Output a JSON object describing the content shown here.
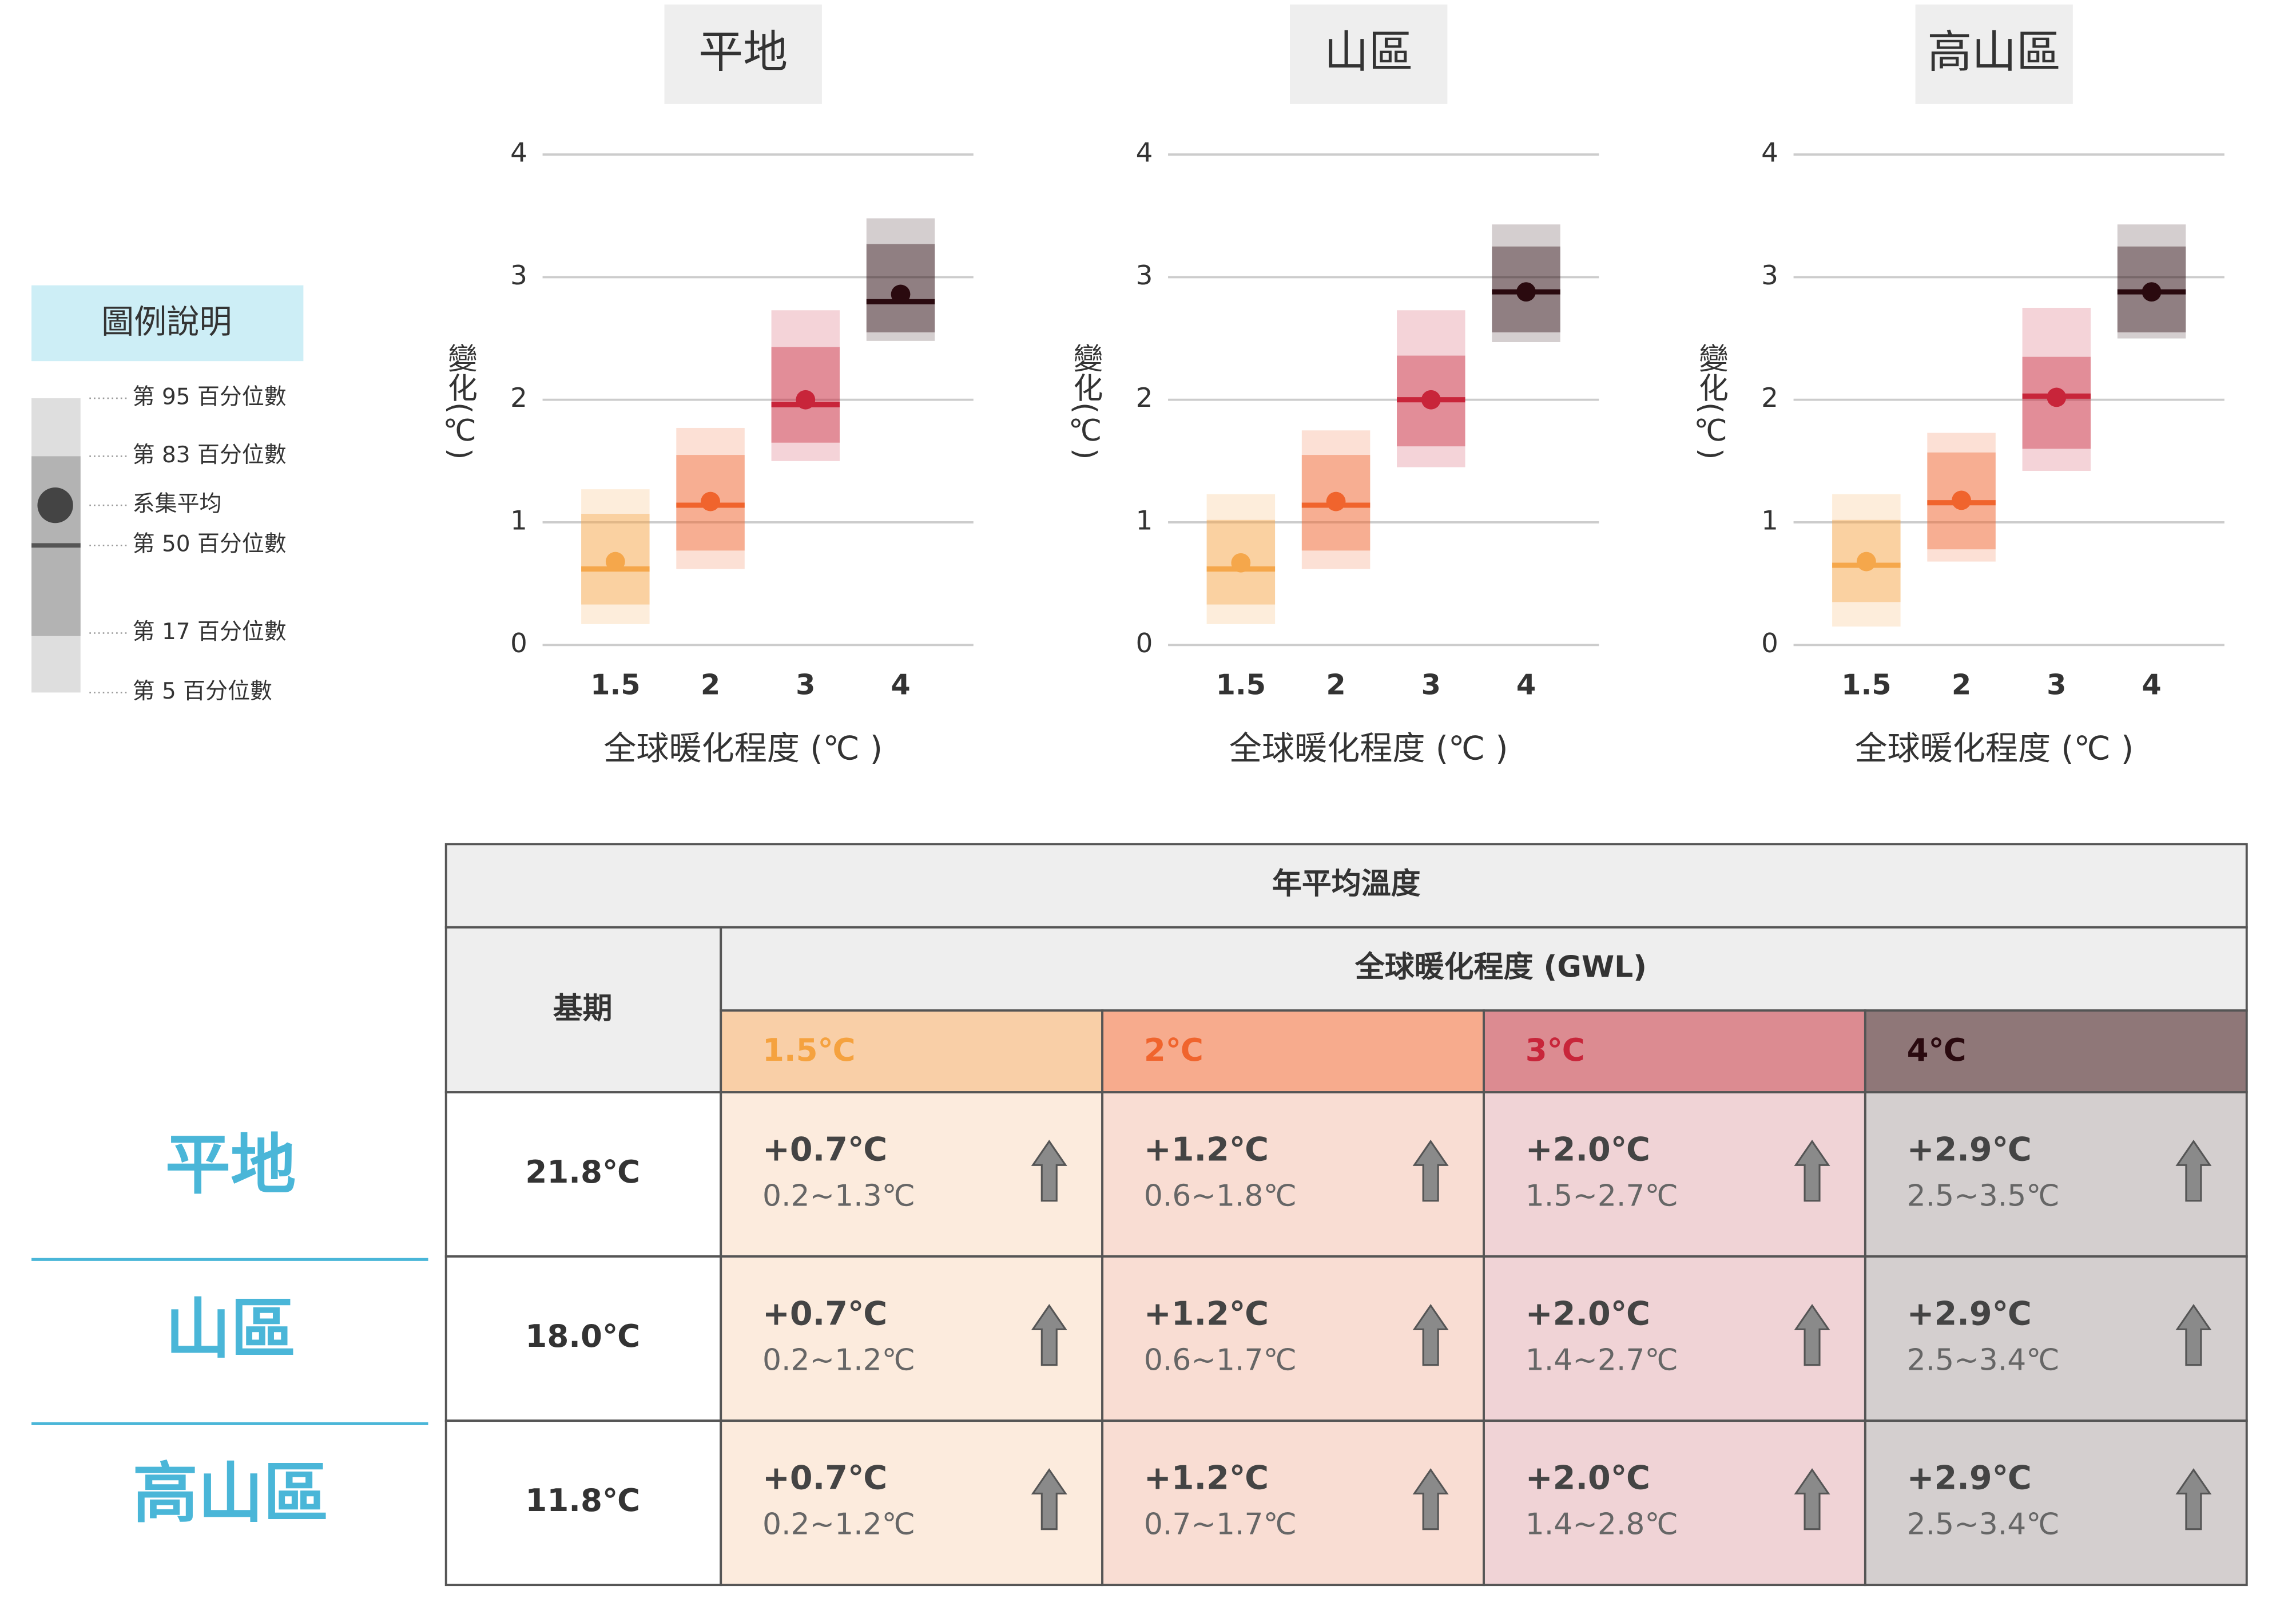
{
  "chart_data": [
    {
      "type": "box",
      "title": "平地",
      "ylabel": "變化(℃)",
      "xlabel": "全球暖化程度 (℃ )",
      "categories": [
        "1.5",
        "2",
        "3",
        "4"
      ],
      "p5": [
        0.17,
        0.62,
        1.5,
        2.48
      ],
      "p17": [
        0.33,
        0.77,
        1.65,
        2.55
      ],
      "p50": [
        0.62,
        1.14,
        1.96,
        2.8
      ],
      "p83": [
        1.07,
        1.55,
        2.43,
        3.27
      ],
      "p95": [
        1.27,
        1.77,
        2.73,
        3.48
      ],
      "mean": [
        0.68,
        1.17,
        2.0,
        2.86
      ],
      "colors": [
        "#f5a74b",
        "#f0642d",
        "#c8253a",
        "#2a0a0f"
      ],
      "ylim": [
        0,
        4
      ],
      "yticks": [
        0,
        1,
        2,
        3,
        4
      ],
      "grid": true
    },
    {
      "type": "box",
      "title": "山區",
      "ylabel": "變化(℃)",
      "xlabel": "全球暖化程度 (℃ )",
      "categories": [
        "1.5",
        "2",
        "3",
        "4"
      ],
      "p5": [
        0.17,
        0.62,
        1.45,
        2.47
      ],
      "p17": [
        0.33,
        0.77,
        1.62,
        2.55
      ],
      "p50": [
        0.62,
        1.14,
        2.0,
        2.88
      ],
      "p83": [
        1.02,
        1.55,
        2.36,
        3.25
      ],
      "p95": [
        1.23,
        1.75,
        2.73,
        3.43
      ],
      "mean": [
        0.67,
        1.17,
        2.0,
        2.88
      ],
      "colors": [
        "#f5a74b",
        "#f0642d",
        "#c8253a",
        "#2a0a0f"
      ],
      "ylim": [
        0,
        4
      ],
      "yticks": [
        0,
        1,
        2,
        3,
        4
      ],
      "grid": true
    },
    {
      "type": "box",
      "title": "高山區",
      "ylabel": "變化(℃)",
      "xlabel": "全球暖化程度 (℃ )",
      "categories": [
        "1.5",
        "2",
        "3",
        "4"
      ],
      "p5": [
        0.15,
        0.68,
        1.42,
        2.5
      ],
      "p17": [
        0.35,
        0.78,
        1.6,
        2.55
      ],
      "p50": [
        0.65,
        1.16,
        2.03,
        2.88
      ],
      "p83": [
        1.02,
        1.57,
        2.35,
        3.25
      ],
      "p95": [
        1.23,
        1.73,
        2.75,
        3.43
      ],
      "mean": [
        0.68,
        1.18,
        2.02,
        2.88
      ],
      "colors": [
        "#f5a74b",
        "#f0642d",
        "#c8253a",
        "#2a0a0f"
      ],
      "ylim": [
        0,
        4
      ],
      "yticks": [
        0,
        1,
        2,
        3,
        4
      ],
      "grid": true
    }
  ],
  "legend": {
    "title": "圖例說明",
    "items": [
      "第 95 百分位數",
      "第 83 百分位數",
      "系集平均",
      "第 50 百分位數",
      "第 17 百分位數",
      "第 5 百分位數"
    ]
  },
  "table": {
    "title": "年平均溫度",
    "base_header": "基期",
    "gwl_header": "全球暖化程度 (GWL)",
    "columns": [
      "1.5℃",
      "2℃",
      "3℃",
      "4℃"
    ],
    "rows": [
      {
        "label": "平地",
        "base": "21.8℃",
        "cells": [
          {
            "mean": "+0.7℃",
            "range": "0.2~1.3℃"
          },
          {
            "mean": "+1.2℃",
            "range": "0.6~1.8℃"
          },
          {
            "mean": "+2.0℃",
            "range": "1.5~2.7℃"
          },
          {
            "mean": "+2.9℃",
            "range": "2.5~3.5℃"
          }
        ]
      },
      {
        "label": "山區",
        "base": "18.0℃",
        "cells": [
          {
            "mean": "+0.7℃",
            "range": "0.2~1.2℃"
          },
          {
            "mean": "+1.2℃",
            "range": "0.6~1.7℃"
          },
          {
            "mean": "+2.0℃",
            "range": "1.4~2.7℃"
          },
          {
            "mean": "+2.9℃",
            "range": "2.5~3.4℃"
          }
        ]
      },
      {
        "label": "高山區",
        "base": "11.8℃",
        "cells": [
          {
            "mean": "+0.7℃",
            "range": "0.2~1.2℃"
          },
          {
            "mean": "+1.2℃",
            "range": "0.7~1.7℃"
          },
          {
            "mean": "+2.0℃",
            "range": "1.4~2.8℃"
          },
          {
            "mean": "+2.9℃",
            "range": "2.5~3.4℃"
          }
        ]
      }
    ]
  }
}
